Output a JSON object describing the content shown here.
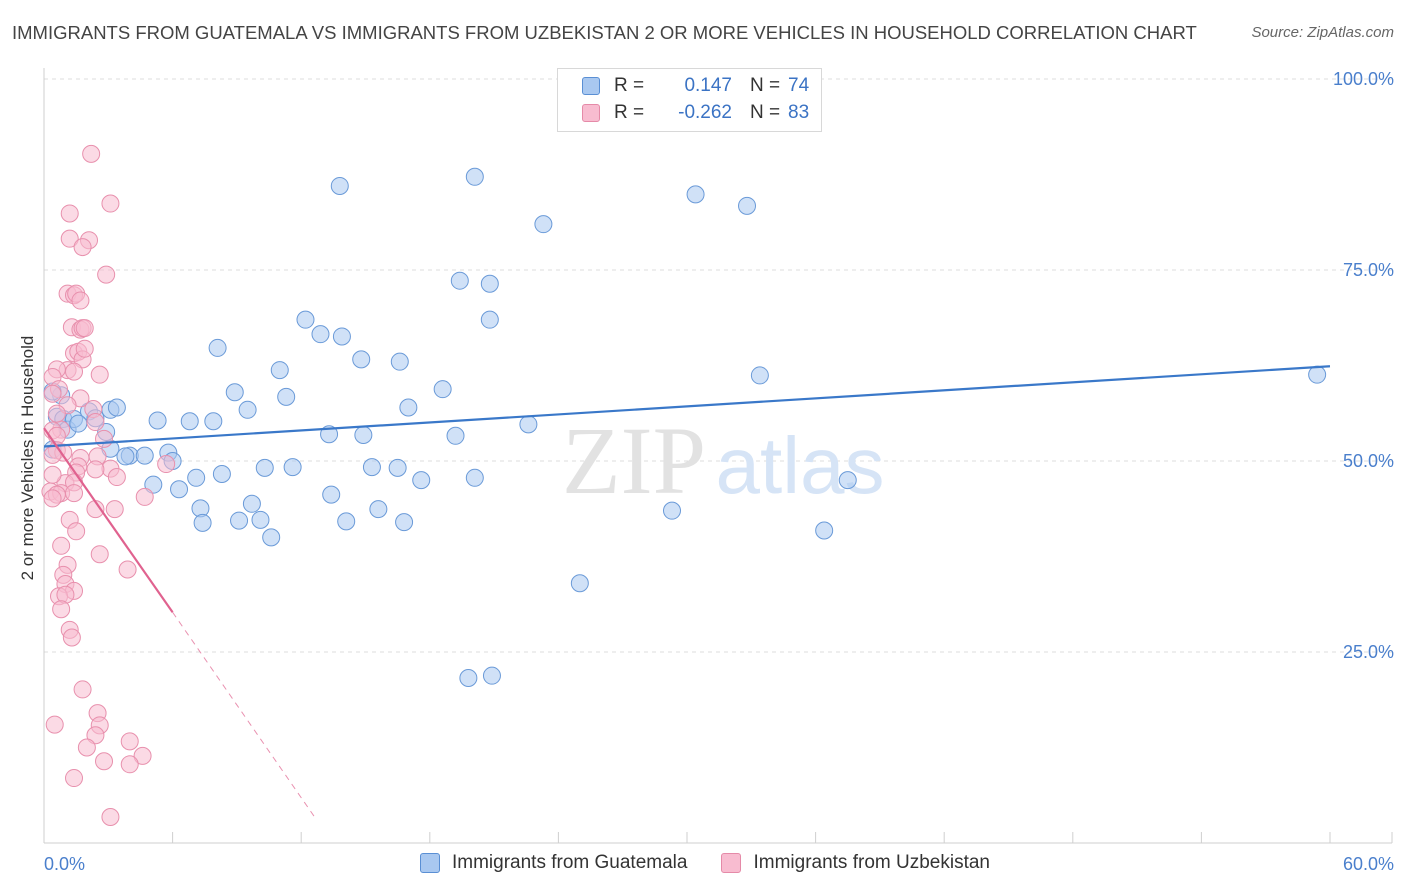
{
  "header": {
    "title": "IMMIGRANTS FROM GUATEMALA VS IMMIGRANTS FROM UZBEKISTAN 2 OR MORE VEHICLES IN HOUSEHOLD CORRELATION CHART",
    "source": "Source: ZipAtlas.com"
  },
  "watermark": {
    "zip": "ZIP",
    "atlas": "atlas"
  },
  "legend": {
    "rows": [
      {
        "r_label": "R =",
        "r_value": "0.147",
        "n_label": "N =",
        "n_value": "74",
        "color": "#a9c8f0",
        "stroke": "#5a8fd4"
      },
      {
        "r_label": "R =",
        "r_value": "-0.262",
        "n_label": "N =",
        "n_value": "83",
        "color": "#f8bcd0",
        "stroke": "#e58aa8"
      }
    ]
  },
  "bottom_legend": {
    "items": [
      {
        "label": "Immigrants from Guatemala",
        "color": "#a9c8f0",
        "stroke": "#5a8fd4"
      },
      {
        "label": "Immigrants from Uzbekistan",
        "color": "#f8bcd0",
        "stroke": "#e58aa8"
      }
    ]
  },
  "chart_data": {
    "type": "scatter",
    "title": "IMMIGRANTS FROM GUATEMALA VS IMMIGRANTS FROM UZBEKISTAN 2 OR MORE VEHICLES IN HOUSEHOLD CORRELATION CHART",
    "xlabel": "",
    "ylabel": "2 or more Vehicles in Household",
    "xlim": [
      0,
      60
    ],
    "ylim": [
      0,
      100
    ],
    "x_tick_labels": [
      "0.0%",
      "60.0%"
    ],
    "y_tick_labels": [
      "25.0%",
      "50.0%",
      "75.0%",
      "100.0%"
    ],
    "y_ticks": [
      25,
      50,
      75,
      100
    ],
    "grid": true,
    "legend_position": "top-center",
    "series": [
      {
        "name": "Immigrants from Guatemala",
        "color": "#a9c8f0",
        "stroke": "#6a9ad8",
        "trend": {
          "x": [
            0,
            60
          ],
          "y": [
            51.9,
            62.4
          ],
          "color": "#3a78c9"
        },
        "points": [
          [
            0.8,
            58.6
          ],
          [
            0.6,
            55.8
          ],
          [
            0.9,
            55.5
          ],
          [
            1.1,
            54.1
          ],
          [
            1.4,
            55.5
          ],
          [
            0.4,
            51.5
          ],
          [
            2.1,
            56.5
          ],
          [
            2.4,
            55.6
          ],
          [
            3.1,
            56.7
          ],
          [
            3.4,
            57.0
          ],
          [
            2.9,
            53.8
          ],
          [
            3.1,
            51.6
          ],
          [
            4.0,
            50.7
          ],
          [
            3.8,
            50.6
          ],
          [
            4.7,
            50.7
          ],
          [
            5.3,
            55.3
          ],
          [
            5.1,
            46.9
          ],
          [
            5.8,
            51.1
          ],
          [
            6.0,
            50.0
          ],
          [
            6.3,
            46.3
          ],
          [
            6.8,
            55.2
          ],
          [
            7.1,
            47.8
          ],
          [
            7.3,
            43.8
          ],
          [
            7.4,
            41.9
          ],
          [
            7.9,
            55.2
          ],
          [
            8.1,
            64.8
          ],
          [
            8.3,
            48.3
          ],
          [
            8.9,
            59.0
          ],
          [
            9.1,
            42.2
          ],
          [
            9.5,
            56.7
          ],
          [
            9.7,
            44.4
          ],
          [
            10.1,
            42.3
          ],
          [
            10.3,
            49.1
          ],
          [
            10.6,
            40.0
          ],
          [
            11.0,
            61.9
          ],
          [
            11.3,
            58.4
          ],
          [
            11.6,
            49.2
          ],
          [
            12.2,
            68.5
          ],
          [
            12.9,
            66.6
          ],
          [
            13.3,
            53.5
          ],
          [
            13.4,
            45.6
          ],
          [
            13.9,
            66.3
          ],
          [
            13.8,
            86.0
          ],
          [
            14.1,
            42.1
          ],
          [
            14.8,
            63.3
          ],
          [
            14.9,
            53.4
          ],
          [
            15.3,
            49.2
          ],
          [
            15.6,
            43.7
          ],
          [
            16.5,
            49.1
          ],
          [
            16.6,
            63.0
          ],
          [
            16.8,
            42.0
          ],
          [
            17.0,
            57.0
          ],
          [
            17.6,
            47.5
          ],
          [
            18.6,
            59.4
          ],
          [
            19.2,
            53.3
          ],
          [
            19.4,
            73.6
          ],
          [
            19.8,
            21.6
          ],
          [
            20.1,
            87.2
          ],
          [
            20.1,
            47.8
          ],
          [
            20.8,
            68.5
          ],
          [
            20.8,
            73.2
          ],
          [
            20.9,
            21.9
          ],
          [
            22.6,
            54.8
          ],
          [
            23.3,
            81.0
          ],
          [
            25.0,
            34.0
          ],
          [
            29.3,
            43.5
          ],
          [
            30.4,
            84.9
          ],
          [
            32.8,
            83.4
          ],
          [
            33.4,
            61.2
          ],
          [
            36.4,
            40.9
          ],
          [
            37.5,
            47.5
          ],
          [
            59.4,
            61.3
          ],
          [
            0.4,
            59.1
          ],
          [
            1.6,
            54.9
          ]
        ]
      },
      {
        "name": "Immigrants from Uzbekistan",
        "color": "#f8bcd0",
        "stroke": "#e890ad",
        "trend": {
          "x": [
            0,
            6
          ],
          "y": [
            54.3,
            30.2
          ],
          "dash_x": [
            6,
            12.7
          ],
          "dash_y": [
            30.2,
            3.1
          ],
          "color": "#e0628f"
        },
        "points": [
          [
            2.2,
            90.2
          ],
          [
            3.1,
            83.7
          ],
          [
            1.2,
            82.4
          ],
          [
            1.2,
            79.1
          ],
          [
            2.1,
            78.9
          ],
          [
            1.8,
            78.0
          ],
          [
            2.9,
            74.4
          ],
          [
            1.1,
            71.9
          ],
          [
            1.4,
            71.7
          ],
          [
            1.5,
            71.9
          ],
          [
            1.7,
            71.0
          ],
          [
            1.3,
            67.5
          ],
          [
            1.7,
            67.2
          ],
          [
            1.8,
            67.4
          ],
          [
            1.9,
            67.4
          ],
          [
            1.4,
            64.1
          ],
          [
            1.6,
            64.3
          ],
          [
            1.8,
            63.3
          ],
          [
            1.1,
            61.9
          ],
          [
            1.4,
            61.7
          ],
          [
            0.6,
            62.0
          ],
          [
            0.4,
            61.0
          ],
          [
            2.6,
            61.3
          ],
          [
            0.7,
            59.4
          ],
          [
            0.4,
            58.8
          ],
          [
            1.7,
            58.2
          ],
          [
            1.1,
            57.3
          ],
          [
            2.3,
            56.8
          ],
          [
            2.4,
            55.1
          ],
          [
            0.8,
            54.1
          ],
          [
            0.4,
            54.0
          ],
          [
            0.6,
            53.3
          ],
          [
            0.6,
            51.4
          ],
          [
            0.9,
            51.1
          ],
          [
            0.4,
            50.8
          ],
          [
            1.7,
            50.4
          ],
          [
            2.5,
            50.6
          ],
          [
            1.6,
            49.3
          ],
          [
            3.1,
            49.0
          ],
          [
            5.7,
            49.6
          ],
          [
            2.4,
            48.9
          ],
          [
            1.5,
            48.5
          ],
          [
            3.4,
            47.9
          ],
          [
            1.0,
            47.1
          ],
          [
            1.4,
            47.2
          ],
          [
            0.3,
            46.0
          ],
          [
            0.8,
            45.8
          ],
          [
            1.4,
            45.8
          ],
          [
            0.6,
            45.6
          ],
          [
            0.4,
            45.1
          ],
          [
            4.7,
            45.3
          ],
          [
            2.4,
            43.7
          ],
          [
            3.3,
            43.7
          ],
          [
            1.2,
            42.3
          ],
          [
            0.8,
            38.9
          ],
          [
            2.6,
            37.8
          ],
          [
            1.1,
            36.4
          ],
          [
            3.9,
            35.8
          ],
          [
            0.9,
            35.1
          ],
          [
            1.0,
            33.9
          ],
          [
            1.4,
            33.0
          ],
          [
            0.7,
            32.3
          ],
          [
            1.0,
            32.5
          ],
          [
            1.2,
            27.9
          ],
          [
            1.3,
            26.9
          ],
          [
            1.8,
            20.1
          ],
          [
            2.5,
            17.0
          ],
          [
            0.5,
            15.5
          ],
          [
            2.6,
            15.4
          ],
          [
            2.4,
            14.1
          ],
          [
            2.0,
            12.5
          ],
          [
            4.0,
            13.3
          ],
          [
            4.6,
            11.4
          ],
          [
            2.8,
            10.7
          ],
          [
            4.0,
            10.3
          ],
          [
            1.4,
            8.5
          ],
          [
            3.1,
            3.4
          ],
          [
            0.8,
            30.6
          ],
          [
            1.5,
            40.8
          ],
          [
            0.6,
            56.2
          ],
          [
            1.9,
            64.7
          ],
          [
            2.8,
            52.9
          ],
          [
            0.4,
            48.2
          ]
        ]
      }
    ]
  }
}
